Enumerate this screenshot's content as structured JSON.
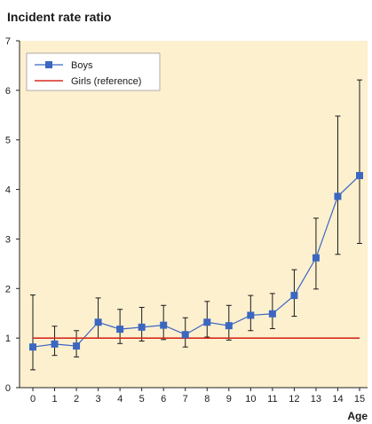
{
  "chart_data": {
    "type": "line",
    "title": "Incident rate ratio",
    "xlabel": "Age",
    "ylabel": "",
    "x": [
      0,
      1,
      2,
      3,
      4,
      5,
      6,
      7,
      8,
      9,
      10,
      11,
      12,
      13,
      14,
      15
    ],
    "ylim": [
      0,
      7
    ],
    "yticks": [
      0,
      1,
      2,
      3,
      4,
      5,
      6,
      7
    ],
    "grid": false,
    "legend_position": "top-left",
    "background_color": "#fdf0cf",
    "series": [
      {
        "name": "Boys",
        "color": "#3b67c1",
        "marker": "square",
        "values": [
          0.82,
          0.88,
          0.84,
          1.32,
          1.18,
          1.22,
          1.26,
          1.07,
          1.32,
          1.25,
          1.46,
          1.49,
          1.86,
          2.62,
          3.86,
          4.28
        ],
        "error_lower": [
          0.36,
          0.65,
          0.62,
          1.0,
          0.89,
          0.94,
          0.97,
          0.82,
          1.02,
          0.96,
          1.15,
          1.19,
          1.44,
          1.99,
          2.69,
          2.91
        ],
        "error_upper": [
          1.87,
          1.24,
          1.15,
          1.81,
          1.58,
          1.62,
          1.66,
          1.41,
          1.74,
          1.66,
          1.86,
          1.9,
          2.38,
          3.42,
          5.48,
          6.21
        ]
      },
      {
        "name": "Girls (reference)",
        "color": "#d62d20",
        "marker": "none",
        "values": [
          1,
          1,
          1,
          1,
          1,
          1,
          1,
          1,
          1,
          1,
          1,
          1,
          1,
          1,
          1,
          1
        ]
      }
    ]
  }
}
